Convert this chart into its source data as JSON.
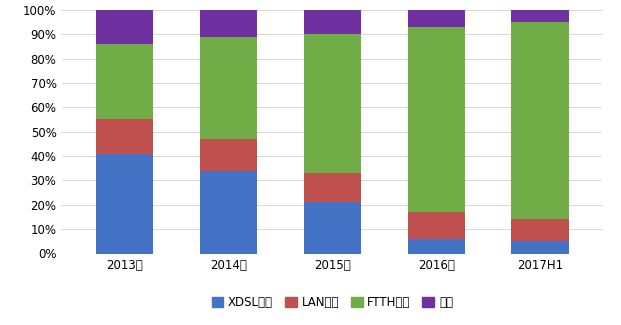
{
  "categories": [
    "2013年",
    "2014年",
    "2015年",
    "2016年",
    "2017H1"
  ],
  "series": {
    "XDSL端口": [
      41,
      34,
      21,
      6,
      5
    ],
    "LAN端口": [
      14,
      13,
      12,
      11,
      9
    ],
    "FTTH端口": [
      31,
      42,
      57,
      76,
      81
    ],
    "其他": [
      14,
      11,
      10,
      7,
      5
    ]
  },
  "colors": {
    "XDSL端口": "#4472C4",
    "LAN端口": "#C0504D",
    "FTTH端口": "#70AD47",
    "其他": "#7030A0"
  },
  "legend_labels": [
    "XDSL端口",
    "LAN端口",
    "FTTH端口",
    "其他"
  ],
  "ylim": [
    0,
    100
  ],
  "yticks": [
    0,
    10,
    20,
    30,
    40,
    50,
    60,
    70,
    80,
    90,
    100
  ],
  "yticklabels": [
    "0%",
    "10%",
    "20%",
    "30%",
    "40%",
    "50%",
    "60%",
    "70%",
    "80%",
    "90%",
    "100%"
  ],
  "background_color": "#ffffff",
  "grid_color": "#d0d0d0",
  "bar_width": 0.55,
  "figsize": [
    6.21,
    3.25
  ],
  "dpi": 100
}
